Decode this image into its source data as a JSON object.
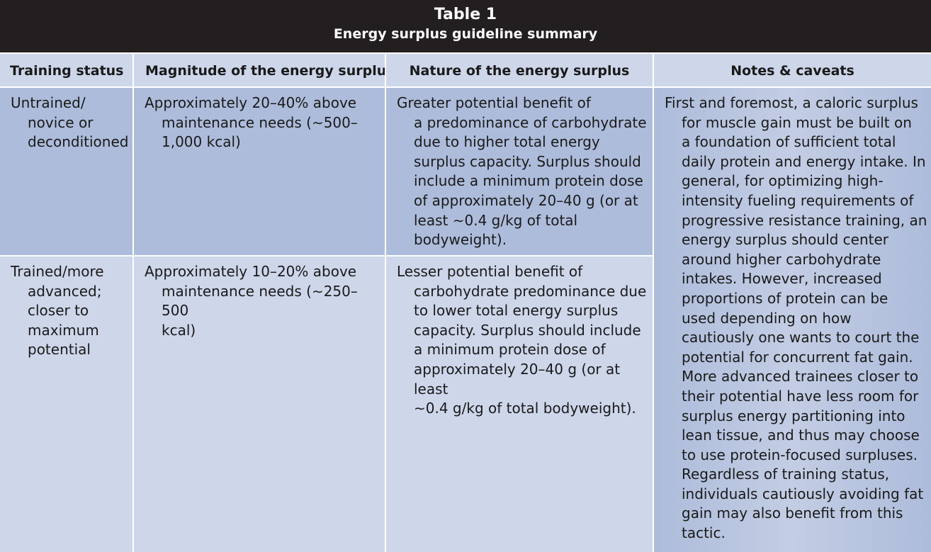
{
  "table": {
    "title": "Table 1",
    "subtitle": "Energy surplus guideline summary",
    "headers": [
      "Training status",
      "Magnitude of the energy surplus",
      "Nature of the energy surplus",
      "Notes & caveats"
    ],
    "rows": [
      {
        "status": "Untrained/\nnovice or\ndeconditioned",
        "magnitude": "Approximately 20–40% above\nmaintenance needs (∼500–\n1,000 kcal)",
        "nature": "Greater potential benefit of\na predominance of carbohydrate\ndue to higher total energy\nsurplus capacity. Surplus should\ninclude a minimum protein dose\nof approximately 20–40 g (or at\nleast ∼0.4 g/kg of total\nbodyweight)."
      },
      {
        "status": "Trained/more\nadvanced;\ncloser to\nmaximum\npotential",
        "magnitude": "Approximately 10–20% above\nmaintenance needs (∼250–500\nkcal)",
        "nature": "Lesser potential benefit of\ncarbohydrate predominance due\nto lower total energy surplus\ncapacity. Surplus should include\na minimum protein dose of\napproximately 20–40 g (or at least\n∼0.4 g/kg of total bodyweight)."
      }
    ],
    "notes": "First and foremost, a caloric surplus\nfor muscle gain must be built on\na foundation of sufficient total\ndaily protein and energy intake. In\ngeneral, for optimizing high-\nintensity fueling requirements of\nprogressive resistance training, an\nenergy surplus should center\naround higher carbohydrate\nintakes. However, increased\nproportions of protein can be\nused depending on how\ncautiously one wants to court the\npotential for concurrent fat gain.\nMore advanced trainees closer to\ntheir potential have less room for\nsurplus energy partitioning into\nlean tissue, and thus may choose\nto use protein-focused surpluses.\nRegardless of training status,\nindividuals cautiously avoiding fat\ngain may also benefit from this\ntactic."
  }
}
